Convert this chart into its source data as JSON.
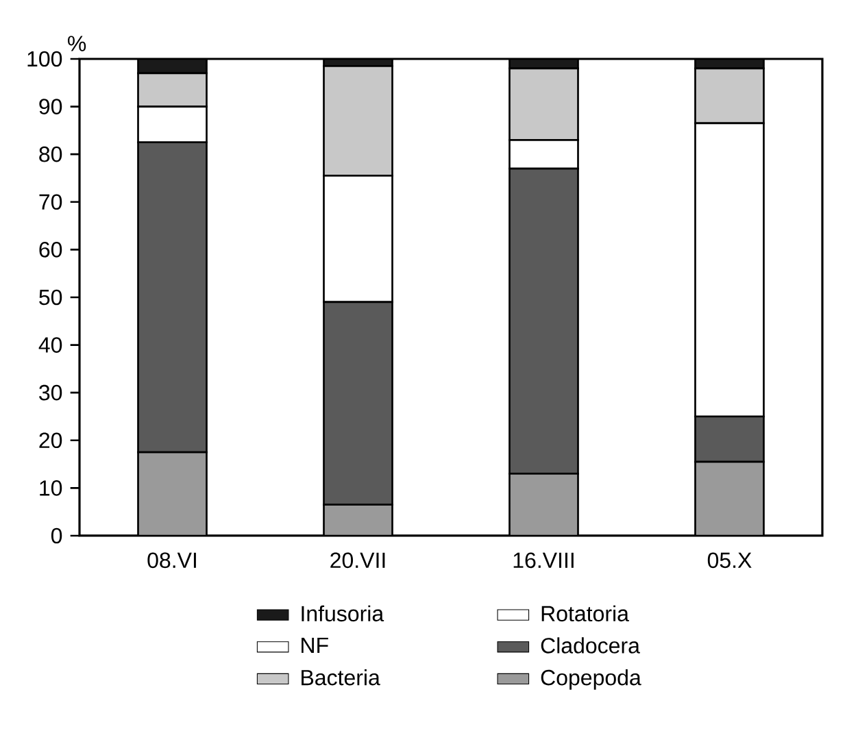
{
  "chart_data": {
    "type": "bar",
    "stacked": true,
    "ylabel": "%",
    "categories": [
      "08.VI",
      "20.VII",
      "16.VIII",
      "05.X"
    ],
    "series": [
      {
        "name": "Copepoda",
        "color": "#9a9a9a",
        "values": [
          17.5,
          6.5,
          13,
          15.5
        ]
      },
      {
        "name": "Cladocera",
        "color": "#5a5a5a",
        "values": [
          65,
          42.5,
          64,
          9.5
        ]
      },
      {
        "name": "Rotatoria",
        "color": "#ffffff",
        "values": [
          0,
          0,
          0,
          0
        ]
      },
      {
        "name": "NF",
        "color": "#ffffff",
        "values": [
          7.5,
          26.5,
          6,
          61.5
        ]
      },
      {
        "name": "Bacteria",
        "color": "#c8c8c8",
        "values": [
          7,
          23,
          15,
          11.5
        ]
      },
      {
        "name": "Infusoria",
        "color": "#1a1a1a",
        "values": [
          3,
          1.5,
          2,
          2
        ]
      }
    ],
    "ylim": [
      0,
      100
    ],
    "yticks": [
      0,
      10,
      20,
      30,
      40,
      50,
      60,
      70,
      80,
      90,
      100
    ],
    "grid": false,
    "legend": "bottom"
  }
}
